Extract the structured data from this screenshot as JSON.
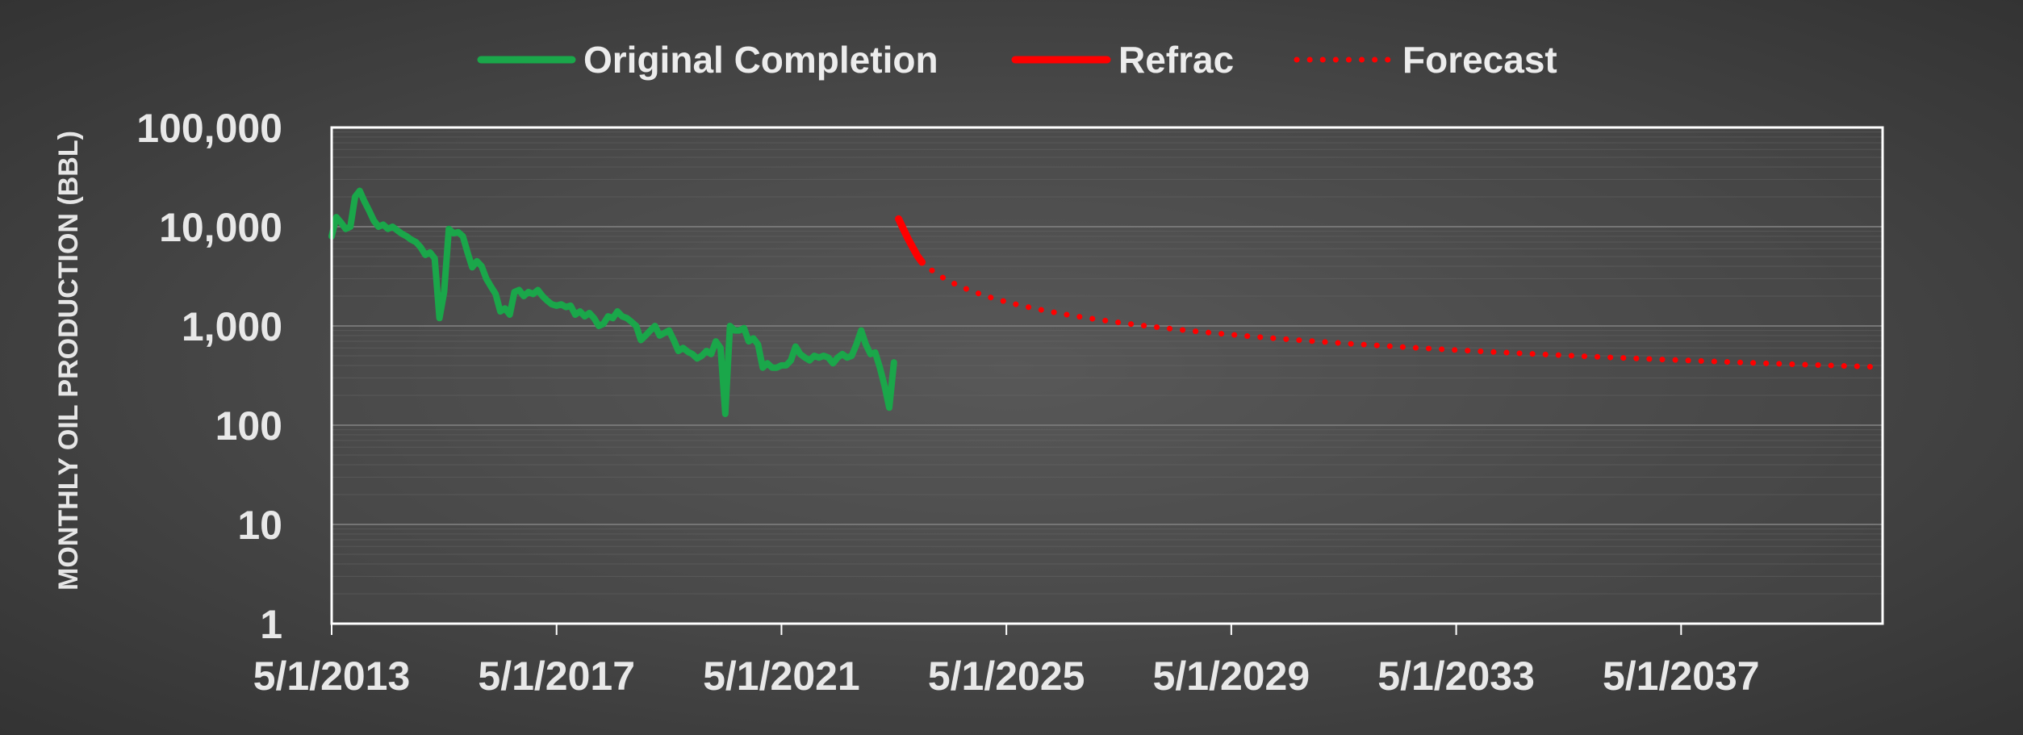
{
  "chart_data": {
    "type": "line",
    "ylabel": "MONTHLY OIL PRODUCTION (BBL)",
    "xlabel": "",
    "title": "",
    "y_scale": "log",
    "ylim": [
      1,
      100000
    ],
    "xlim": [
      "2013-05-01",
      "2040-12-01"
    ],
    "y_ticks": [
      {
        "value": 1,
        "label": "1"
      },
      {
        "value": 10,
        "label": "10"
      },
      {
        "value": 100,
        "label": "100"
      },
      {
        "value": 1000,
        "label": "1,000"
      },
      {
        "value": 10000,
        "label": "10,000"
      },
      {
        "value": 100000,
        "label": "100,000"
      }
    ],
    "x_ticks": [
      {
        "value": "2013-05-01",
        "label": "5/1/2013"
      },
      {
        "value": "2017-05-01",
        "label": "5/1/2017"
      },
      {
        "value": "2021-05-01",
        "label": "5/1/2021"
      },
      {
        "value": "2025-05-01",
        "label": "5/1/2025"
      },
      {
        "value": "2029-05-01",
        "label": "5/1/2029"
      },
      {
        "value": "2033-05-01",
        "label": "5/1/2033"
      },
      {
        "value": "2037-05-01",
        "label": "5/1/2037"
      }
    ],
    "legend": {
      "placement": "top",
      "entries": [
        {
          "label": "Original Completion",
          "series": "original"
        },
        {
          "label": "Refrac",
          "series": "refrac"
        },
        {
          "label": "Forecast",
          "series": "forecast"
        }
      ]
    },
    "grid": true,
    "series": [
      {
        "id": "original",
        "name": "Original Completion",
        "color": "#1aa74a",
        "style": "solid",
        "points": [
          [
            "2013-05-01",
            8000
          ],
          [
            "2013-06-01",
            12500
          ],
          [
            "2013-07-01",
            11000
          ],
          [
            "2013-08-01",
            9500
          ],
          [
            "2013-09-01",
            10000
          ],
          [
            "2013-10-01",
            20000
          ],
          [
            "2013-11-01",
            23000
          ],
          [
            "2013-12-01",
            18000
          ],
          [
            "2014-01-01",
            14500
          ],
          [
            "2014-02-01",
            11500
          ],
          [
            "2014-03-01",
            10000
          ],
          [
            "2014-04-01",
            10500
          ],
          [
            "2014-05-01",
            9500
          ],
          [
            "2014-06-01",
            10000
          ],
          [
            "2014-07-01",
            9200
          ],
          [
            "2014-08-01",
            8500
          ],
          [
            "2014-09-01",
            8000
          ],
          [
            "2014-10-01",
            7400
          ],
          [
            "2014-11-01",
            7000
          ],
          [
            "2014-12-01",
            6200
          ],
          [
            "2015-01-01",
            5200
          ],
          [
            "2015-02-01",
            5500
          ],
          [
            "2015-03-01",
            4800
          ],
          [
            "2015-04-01",
            1200
          ],
          [
            "2015-05-01",
            2200
          ],
          [
            "2015-06-01",
            9500
          ],
          [
            "2015-07-01",
            8600
          ],
          [
            "2015-08-01",
            8800
          ],
          [
            "2015-09-01",
            8000
          ],
          [
            "2015-10-01",
            5500
          ],
          [
            "2015-11-01",
            3900
          ],
          [
            "2015-12-01",
            4500
          ],
          [
            "2016-01-01",
            4000
          ],
          [
            "2016-02-01",
            3000
          ],
          [
            "2016-03-01",
            2500
          ],
          [
            "2016-04-01",
            2100
          ],
          [
            "2016-05-01",
            1400
          ],
          [
            "2016-06-01",
            1500
          ],
          [
            "2016-07-01",
            1300
          ],
          [
            "2016-08-01",
            2200
          ],
          [
            "2016-09-01",
            2300
          ],
          [
            "2016-10-01",
            2000
          ],
          [
            "2016-11-01",
            2200
          ],
          [
            "2016-12-01",
            2100
          ],
          [
            "2017-01-01",
            2300
          ],
          [
            "2017-02-01",
            2000
          ],
          [
            "2017-03-01",
            1800
          ],
          [
            "2017-04-01",
            1650
          ],
          [
            "2017-05-01",
            1600
          ],
          [
            "2017-06-01",
            1650
          ],
          [
            "2017-07-01",
            1550
          ],
          [
            "2017-08-01",
            1600
          ],
          [
            "2017-09-01",
            1300
          ],
          [
            "2017-10-01",
            1400
          ],
          [
            "2017-11-01",
            1250
          ],
          [
            "2017-12-01",
            1350
          ],
          [
            "2018-01-01",
            1200
          ],
          [
            "2018-02-01",
            1000
          ],
          [
            "2018-03-01",
            1050
          ],
          [
            "2018-04-01",
            1250
          ],
          [
            "2018-05-01",
            1200
          ],
          [
            "2018-06-01",
            1400
          ],
          [
            "2018-07-01",
            1250
          ],
          [
            "2018-08-01",
            1200
          ],
          [
            "2018-09-01",
            1100
          ],
          [
            "2018-10-01",
            1000
          ],
          [
            "2018-11-01",
            720
          ],
          [
            "2018-12-01",
            800
          ],
          [
            "2019-01-01",
            900
          ],
          [
            "2019-02-01",
            1000
          ],
          [
            "2019-03-01",
            800
          ],
          [
            "2019-04-01",
            850
          ],
          [
            "2019-05-01",
            900
          ],
          [
            "2019-06-01",
            720
          ],
          [
            "2019-07-01",
            560
          ],
          [
            "2019-08-01",
            600
          ],
          [
            "2019-09-01",
            550
          ],
          [
            "2019-10-01",
            520
          ],
          [
            "2019-11-01",
            470
          ],
          [
            "2019-12-01",
            500
          ],
          [
            "2020-01-01",
            560
          ],
          [
            "2020-02-01",
            520
          ],
          [
            "2020-03-01",
            700
          ],
          [
            "2020-04-01",
            600
          ],
          [
            "2020-05-01",
            130
          ],
          [
            "2020-06-01",
            1000
          ],
          [
            "2020-07-01",
            900
          ],
          [
            "2020-08-01",
            900
          ],
          [
            "2020-09-01",
            950
          ],
          [
            "2020-10-01",
            700
          ],
          [
            "2020-11-01",
            750
          ],
          [
            "2020-12-01",
            650
          ],
          [
            "2021-01-01",
            380
          ],
          [
            "2021-02-01",
            420
          ],
          [
            "2021-03-01",
            380
          ],
          [
            "2021-04-01",
            380
          ],
          [
            "2021-05-01",
            400
          ],
          [
            "2021-06-01",
            400
          ],
          [
            "2021-07-01",
            450
          ],
          [
            "2021-08-01",
            620
          ],
          [
            "2021-09-01",
            520
          ],
          [
            "2021-10-01",
            480
          ],
          [
            "2021-11-01",
            450
          ],
          [
            "2021-12-01",
            500
          ],
          [
            "2022-01-01",
            480
          ],
          [
            "2022-02-01",
            500
          ],
          [
            "2022-03-01",
            480
          ],
          [
            "2022-04-01",
            420
          ],
          [
            "2022-05-01",
            480
          ],
          [
            "2022-06-01",
            520
          ],
          [
            "2022-07-01",
            480
          ],
          [
            "2022-08-01",
            500
          ],
          [
            "2022-09-01",
            650
          ],
          [
            "2022-10-01",
            900
          ],
          [
            "2022-11-01",
            650
          ],
          [
            "2022-12-01",
            520
          ],
          [
            "2023-01-01",
            540
          ],
          [
            "2023-02-01",
            380
          ],
          [
            "2023-03-01",
            250
          ],
          [
            "2023-04-01",
            150
          ],
          [
            "2023-05-01",
            430
          ]
        ]
      },
      {
        "id": "refrac",
        "name": "Refrac",
        "color": "#ff0000",
        "style": "solid",
        "points": [
          [
            "2023-06-01",
            12000
          ],
          [
            "2023-07-01",
            9500
          ],
          [
            "2023-08-01",
            7600
          ],
          [
            "2023-09-01",
            6200
          ],
          [
            "2023-10-01",
            5100
          ],
          [
            "2023-11-01",
            4400
          ]
        ]
      },
      {
        "id": "forecast",
        "name": "Forecast",
        "color": "#ff0000",
        "style": "dotted",
        "curve": {
          "start": "2023-11-01",
          "end": "2040-12-01",
          "qi": 4400,
          "di_per_year": 1.27,
          "b": 1.42
        }
      }
    ]
  }
}
